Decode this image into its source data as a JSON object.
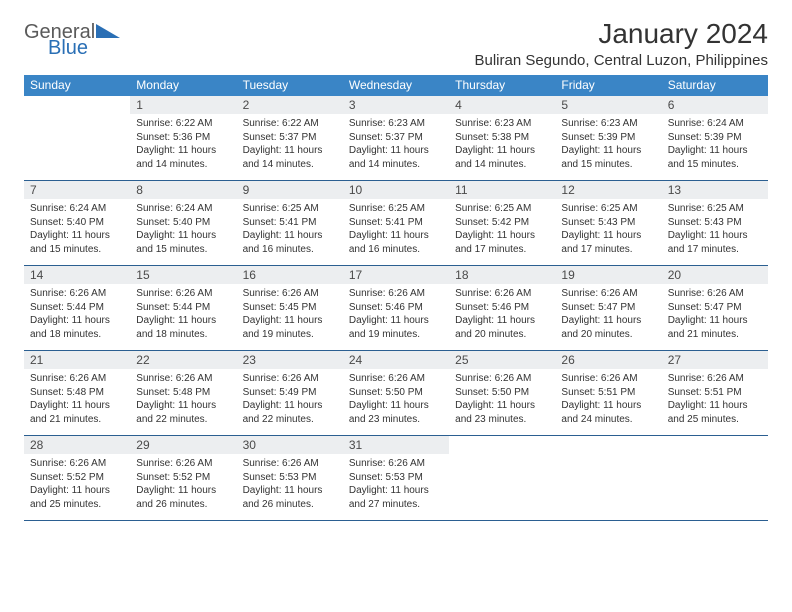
{
  "brand": {
    "word1": "General",
    "word2": "Blue",
    "color_general": "#5a5a5a",
    "color_blue": "#2a6fb5",
    "triangle_color": "#2a6fb5"
  },
  "title": "January 2024",
  "location": "Buliran Segundo, Central Luzon, Philippines",
  "theme": {
    "header_bg": "#3a85c6",
    "header_text": "#ffffff",
    "daynum_bg": "#eceef0",
    "row_border": "#2b5f91",
    "text_color": "#333333"
  },
  "weekdays": [
    "Sunday",
    "Monday",
    "Tuesday",
    "Wednesday",
    "Thursday",
    "Friday",
    "Saturday"
  ],
  "startOffset": 1,
  "daysInMonth": 31,
  "days": {
    "1": {
      "sunrise": "6:22 AM",
      "sunset": "5:36 PM",
      "daylight": "11 hours and 14 minutes."
    },
    "2": {
      "sunrise": "6:22 AM",
      "sunset": "5:37 PM",
      "daylight": "11 hours and 14 minutes."
    },
    "3": {
      "sunrise": "6:23 AM",
      "sunset": "5:37 PM",
      "daylight": "11 hours and 14 minutes."
    },
    "4": {
      "sunrise": "6:23 AM",
      "sunset": "5:38 PM",
      "daylight": "11 hours and 14 minutes."
    },
    "5": {
      "sunrise": "6:23 AM",
      "sunset": "5:39 PM",
      "daylight": "11 hours and 15 minutes."
    },
    "6": {
      "sunrise": "6:24 AM",
      "sunset": "5:39 PM",
      "daylight": "11 hours and 15 minutes."
    },
    "7": {
      "sunrise": "6:24 AM",
      "sunset": "5:40 PM",
      "daylight": "11 hours and 15 minutes."
    },
    "8": {
      "sunrise": "6:24 AM",
      "sunset": "5:40 PM",
      "daylight": "11 hours and 15 minutes."
    },
    "9": {
      "sunrise": "6:25 AM",
      "sunset": "5:41 PM",
      "daylight": "11 hours and 16 minutes."
    },
    "10": {
      "sunrise": "6:25 AM",
      "sunset": "5:41 PM",
      "daylight": "11 hours and 16 minutes."
    },
    "11": {
      "sunrise": "6:25 AM",
      "sunset": "5:42 PM",
      "daylight": "11 hours and 17 minutes."
    },
    "12": {
      "sunrise": "6:25 AM",
      "sunset": "5:43 PM",
      "daylight": "11 hours and 17 minutes."
    },
    "13": {
      "sunrise": "6:25 AM",
      "sunset": "5:43 PM",
      "daylight": "11 hours and 17 minutes."
    },
    "14": {
      "sunrise": "6:26 AM",
      "sunset": "5:44 PM",
      "daylight": "11 hours and 18 minutes."
    },
    "15": {
      "sunrise": "6:26 AM",
      "sunset": "5:44 PM",
      "daylight": "11 hours and 18 minutes."
    },
    "16": {
      "sunrise": "6:26 AM",
      "sunset": "5:45 PM",
      "daylight": "11 hours and 19 minutes."
    },
    "17": {
      "sunrise": "6:26 AM",
      "sunset": "5:46 PM",
      "daylight": "11 hours and 19 minutes."
    },
    "18": {
      "sunrise": "6:26 AM",
      "sunset": "5:46 PM",
      "daylight": "11 hours and 20 minutes."
    },
    "19": {
      "sunrise": "6:26 AM",
      "sunset": "5:47 PM",
      "daylight": "11 hours and 20 minutes."
    },
    "20": {
      "sunrise": "6:26 AM",
      "sunset": "5:47 PM",
      "daylight": "11 hours and 21 minutes."
    },
    "21": {
      "sunrise": "6:26 AM",
      "sunset": "5:48 PM",
      "daylight": "11 hours and 21 minutes."
    },
    "22": {
      "sunrise": "6:26 AM",
      "sunset": "5:48 PM",
      "daylight": "11 hours and 22 minutes."
    },
    "23": {
      "sunrise": "6:26 AM",
      "sunset": "5:49 PM",
      "daylight": "11 hours and 22 minutes."
    },
    "24": {
      "sunrise": "6:26 AM",
      "sunset": "5:50 PM",
      "daylight": "11 hours and 23 minutes."
    },
    "25": {
      "sunrise": "6:26 AM",
      "sunset": "5:50 PM",
      "daylight": "11 hours and 23 minutes."
    },
    "26": {
      "sunrise": "6:26 AM",
      "sunset": "5:51 PM",
      "daylight": "11 hours and 24 minutes."
    },
    "27": {
      "sunrise": "6:26 AM",
      "sunset": "5:51 PM",
      "daylight": "11 hours and 25 minutes."
    },
    "28": {
      "sunrise": "6:26 AM",
      "sunset": "5:52 PM",
      "daylight": "11 hours and 25 minutes."
    },
    "29": {
      "sunrise": "6:26 AM",
      "sunset": "5:52 PM",
      "daylight": "11 hours and 26 minutes."
    },
    "30": {
      "sunrise": "6:26 AM",
      "sunset": "5:53 PM",
      "daylight": "11 hours and 26 minutes."
    },
    "31": {
      "sunrise": "6:26 AM",
      "sunset": "5:53 PM",
      "daylight": "11 hours and 27 minutes."
    }
  },
  "labels": {
    "sunrise": "Sunrise:",
    "sunset": "Sunset:",
    "daylight": "Daylight:"
  }
}
